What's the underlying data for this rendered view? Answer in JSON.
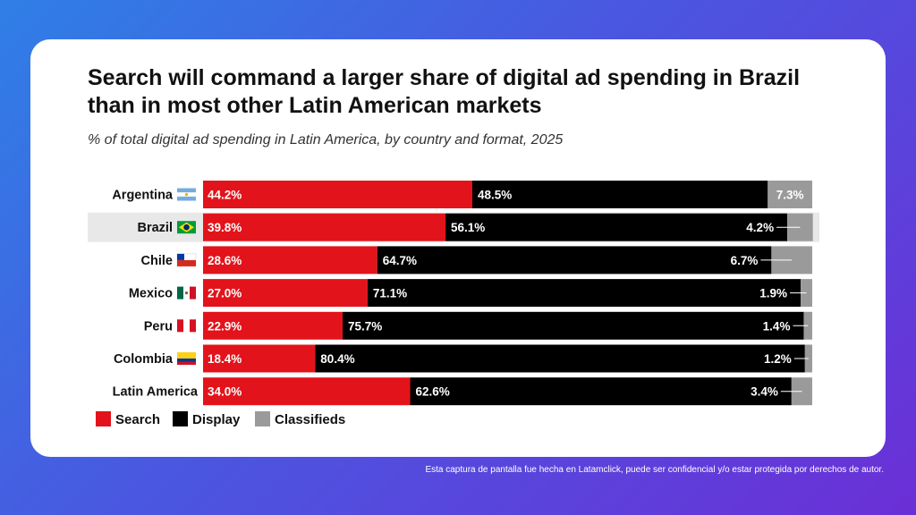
{
  "card": {
    "title": "Search will command a larger share of digital ad spending in Brazil than in most other Latin American markets",
    "subtitle": "% of total digital ad spending in Latin America, by country and format, 2025"
  },
  "footer": {
    "note": "Esta captura de pantalla fue hecha en Latamclick, puede ser confidencial y/o estar protegida por derechos de autor."
  },
  "colors": {
    "search": "#e3131b",
    "display": "#000000",
    "classifieds": "#9a9a9a",
    "highlight_row": "#e8e8e8"
  },
  "chart_data": {
    "type": "bar",
    "orientation": "horizontal",
    "stacked": true,
    "normalized": true,
    "title": "Search will command a larger share of digital ad spending in Brazil than in most other Latin American markets",
    "subtitle": "% of total digital ad spending in Latin America, by country and format, 2025",
    "xlim": [
      0,
      100
    ],
    "highlighted_category": "Brazil",
    "legend_position": "bottom-left",
    "categories": [
      "Argentina",
      "Brazil",
      "Chile",
      "Mexico",
      "Peru",
      "Colombia",
      "Latin America"
    ],
    "flags": [
      "argentina-flag",
      "brazil-flag",
      "chile-flag",
      "mexico-flag",
      "peru-flag",
      "colombia-flag",
      ""
    ],
    "series": [
      {
        "name": "Search",
        "values": [
          44.2,
          39.8,
          28.6,
          27.0,
          22.9,
          18.4,
          34.0
        ],
        "labels": [
          "44.2%",
          "39.8%",
          "28.6%",
          "27.0%",
          "22.9%",
          "18.4%",
          "34.0%"
        ]
      },
      {
        "name": "Display",
        "values": [
          48.5,
          56.1,
          64.7,
          71.1,
          75.7,
          80.4,
          62.6
        ],
        "labels": [
          "48.5%",
          "56.1%",
          "64.7%",
          "71.1%",
          "75.7%",
          "80.4%",
          "62.6%"
        ]
      },
      {
        "name": "Classifieds",
        "values": [
          7.3,
          4.2,
          6.7,
          1.9,
          1.4,
          1.2,
          3.4
        ],
        "labels": [
          "7.3%",
          "4.2%",
          "6.7%",
          "1.9%",
          "1.4%",
          "1.2%",
          "3.4%"
        ]
      }
    ]
  }
}
